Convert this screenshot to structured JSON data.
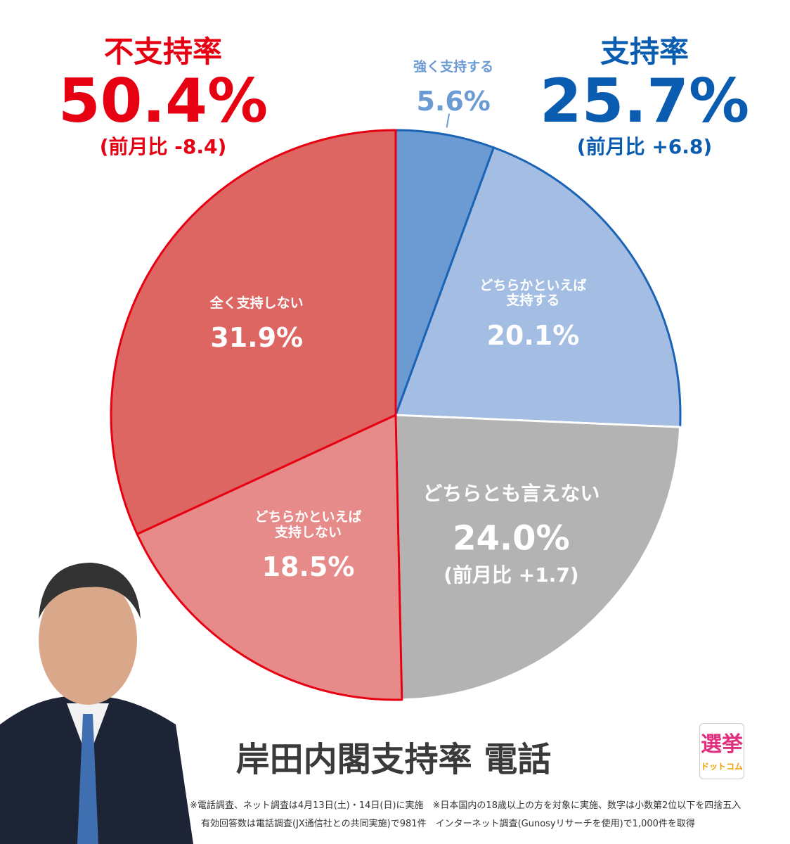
{
  "chart_data": {
    "type": "pie",
    "title": "岸田内閣支持率 電話",
    "categories": [
      "強く支持する",
      "どちらかといえば\n支持する",
      "どちらとも言えない",
      "どちらかといえば\n支持しない",
      "全く支持しない"
    ],
    "values": [
      5.6,
      20.1,
      24.0,
      18.5,
      31.9
    ],
    "value_labels": [
      "5.6%",
      "20.1%",
      "24.0%",
      "18.5%",
      "31.9%"
    ],
    "change_labels": [
      null,
      null,
      "(前月比 +1.7)",
      null,
      null
    ],
    "colors": [
      "#6b9bd2",
      "#a3bde3",
      "#b3b3b3",
      "#e68a8a",
      "#dd6662"
    ],
    "edge_colors": [
      "#1a63b5",
      "#1a63b5",
      "#ffffff",
      "#e60012",
      "#e60012"
    ],
    "summaries": [
      {
        "label": "不支持率",
        "value": 50.4,
        "value_label": "50.4%",
        "change": "(前月比 -8.4)",
        "color": "#e60012"
      },
      {
        "label": "支持率",
        "value": 25.7,
        "value_label": "25.7%",
        "change": "(前月比 +6.8)",
        "color": "#0a5cb0"
      }
    ]
  },
  "notes": [
    "※電話調査、ネット調査は4月13日(土)・14日(日)に実施　※日本国内の18歳以上の方を対象に実施、数字は小数第2位以下を四捨五入",
    "有効回答数は電話調査(JX通信社との共同実施)で981件　インターネット調査(Gunosyリサーチを使用)で1,000件を取得"
  ],
  "logo": [
    "選挙",
    "ドットコム"
  ]
}
